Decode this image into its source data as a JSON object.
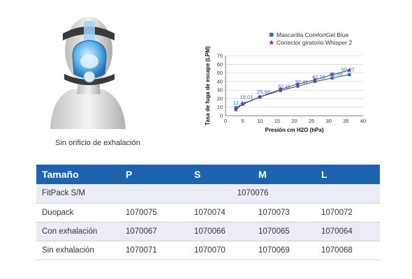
{
  "product_image": {
    "caption": "Sin orificio de exhalación"
  },
  "chart_data": {
    "type": "line",
    "xlabel": "Presión cm H2O (hPa)",
    "ylabel": "Tasa de fuga de escape (LPM)",
    "xlim": [
      0,
      40
    ],
    "ylim": [
      0,
      70
    ],
    "xticks": [
      0,
      5,
      10,
      15,
      20,
      25,
      30,
      35,
      40
    ],
    "yticks": [
      0,
      10,
      20,
      30,
      40,
      50,
      60,
      70
    ],
    "grid": "horizontal",
    "legend_position": "top-right",
    "series": [
      {
        "name": "Mascarilla ComfortGel Blue",
        "marker": "square",
        "color": "#2f6db5",
        "x": [
          3,
          5,
          10,
          16,
          21,
          26,
          31,
          36
        ],
        "y": [
          9.5,
          13.5,
          22,
          29.5,
          34.5,
          40,
          44,
          48
        ]
      },
      {
        "name": "Conector giratorio Whisper 2",
        "marker": "star",
        "color": "#7a2d8c",
        "x": [
          3,
          5,
          10,
          16,
          21,
          26,
          31,
          36
        ],
        "y": [
          7,
          14,
          22,
          31,
          37,
          42,
          48,
          53
        ]
      }
    ],
    "data_labels": [
      {
        "text": "12,44",
        "x": 3,
        "y": 13
      },
      {
        "text": "18,01",
        "x": 5,
        "y": 20
      },
      {
        "text": "25,98",
        "x": 10,
        "y": 25.5
      },
      {
        "text": "32,11",
        "x": 16,
        "y": 32
      },
      {
        "text": "37,41",
        "x": 21,
        "y": 37.5
      },
      {
        "text": "42,16",
        "x": 26,
        "y": 43
      },
      {
        "text": "46,44",
        "x": 31,
        "y": 47
      },
      {
        "text": "50,27",
        "x": 34.5,
        "y": 51.5
      }
    ]
  },
  "table": {
    "headers": [
      "Tamaño",
      "P",
      "S",
      "M",
      "L"
    ],
    "rows": [
      {
        "label": "FitPack S/M",
        "merged": "1070076"
      },
      {
        "label": "Duopack",
        "cells": [
          "1070075",
          "1070074",
          "1070073",
          "1070072"
        ]
      },
      {
        "label": "Con exhalación",
        "cells": [
          "1070067",
          "1070066",
          "1070065",
          "1070064"
        ]
      },
      {
        "label": "Sin exhalación",
        "cells": [
          "1070071",
          "1070070",
          "1070069",
          "1070068"
        ]
      }
    ]
  }
}
